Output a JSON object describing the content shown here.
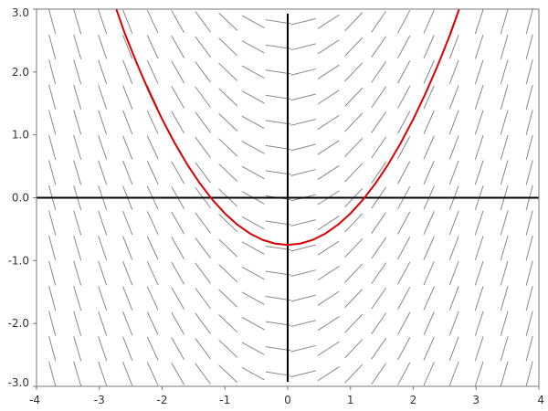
{
  "chart_data": {
    "type": "line",
    "title": "",
    "xlabel": "",
    "ylabel": "",
    "xlim": [
      -4,
      4
    ],
    "ylim": [
      -3,
      3
    ],
    "x_ticks": [
      {
        "value": -4,
        "label": "-4"
      },
      {
        "value": -3,
        "label": "-3"
      },
      {
        "value": -2,
        "label": "-2"
      },
      {
        "value": -1,
        "label": "-1"
      },
      {
        "value": 0,
        "label": "0"
      },
      {
        "value": 1,
        "label": "1"
      },
      {
        "value": 2,
        "label": "2"
      },
      {
        "value": 3,
        "label": "3"
      },
      {
        "value": 4,
        "label": "4"
      }
    ],
    "y_ticks": [
      {
        "value": 3,
        "label": "3.0"
      },
      {
        "value": 2,
        "label": "2.0"
      },
      {
        "value": 1,
        "label": "1.0"
      },
      {
        "value": 0,
        "label": "0.0"
      },
      {
        "value": -1,
        "label": "-1.0"
      },
      {
        "value": -2,
        "label": "-2.0"
      },
      {
        "value": -3,
        "label": "-3.0"
      }
    ],
    "slope_field": {
      "x_start": -3.75,
      "x_step": 0.4,
      "x_count": 20,
      "y_start": -2.8,
      "y_step": 0.4,
      "y_count": 15,
      "slope_rule": "dy/dx = x"
    },
    "series": [
      {
        "color": "#dd0000",
        "points": [
          [
            -2.73,
            3.0
          ],
          [
            -2.6,
            2.63
          ],
          [
            -2.4,
            2.13
          ],
          [
            -2.2,
            1.67
          ],
          [
            -2.0,
            1.25
          ],
          [
            -1.8,
            0.87
          ],
          [
            -1.6,
            0.53
          ],
          [
            -1.4,
            0.23
          ],
          [
            -1.2,
            -0.03
          ],
          [
            -1.0,
            -0.25
          ],
          [
            -0.8,
            -0.43
          ],
          [
            -0.6,
            -0.57
          ],
          [
            -0.4,
            -0.67
          ],
          [
            -0.2,
            -0.73
          ],
          [
            0.0,
            -0.75
          ],
          [
            0.2,
            -0.73
          ],
          [
            0.4,
            -0.67
          ],
          [
            0.6,
            -0.57
          ],
          [
            0.8,
            -0.43
          ],
          [
            1.0,
            -0.25
          ],
          [
            1.2,
            -0.03
          ],
          [
            1.4,
            0.23
          ],
          [
            1.6,
            0.53
          ],
          [
            1.8,
            0.87
          ],
          [
            2.0,
            1.25
          ],
          [
            2.2,
            1.67
          ],
          [
            2.4,
            2.13
          ],
          [
            2.6,
            2.63
          ],
          [
            2.73,
            3.0
          ]
        ]
      }
    ],
    "colors": {
      "curve": "#dd0000",
      "slope_segment": "#888888",
      "axes": "#000000",
      "frame": "#777777",
      "tick_label": "#333333"
    }
  }
}
